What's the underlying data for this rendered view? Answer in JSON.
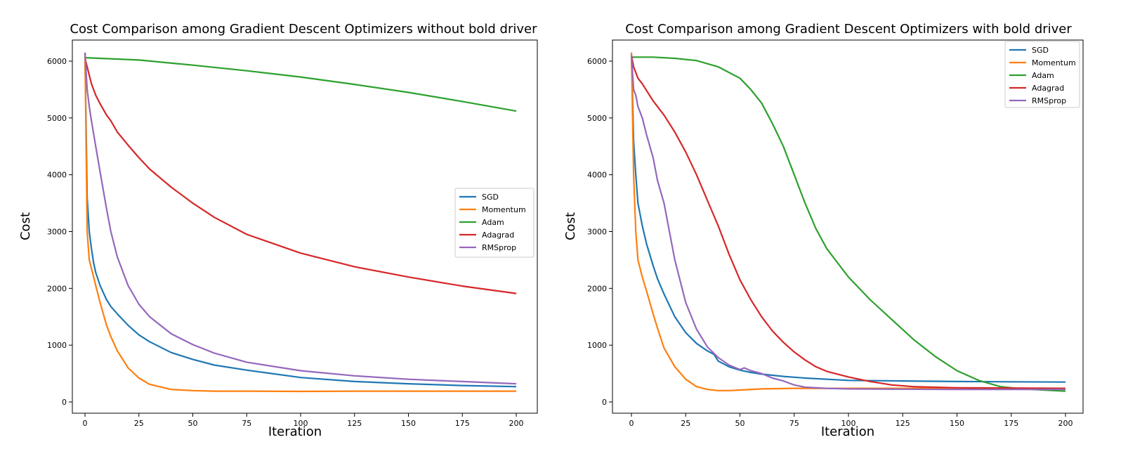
{
  "colors": {
    "SGD": "#1f77b4",
    "Momentum": "#ff7f0e",
    "Adam": "#2ca02c",
    "Adagrad": "#d62728",
    "RMSprop": "#9467bd"
  },
  "chart_data": [
    {
      "type": "line",
      "title": "Cost Comparison among Gradient Descent Optimizers without bold driver",
      "xlabel": "Iteration",
      "ylabel": "Cost",
      "xlim": [
        0,
        200
      ],
      "ylim": [
        0,
        6000
      ],
      "xticks": [
        0,
        25,
        50,
        75,
        100,
        125,
        150,
        175,
        200
      ],
      "yticks": [
        0,
        1000,
        2000,
        3000,
        4000,
        5000,
        6000
      ],
      "grid": false,
      "legend": "center-right",
      "series": [
        {
          "name": "SGD",
          "x": [
            0,
            1,
            2,
            3,
            4,
            5,
            7,
            10,
            12,
            15,
            20,
            25,
            30,
            40,
            50,
            60,
            75,
            100,
            125,
            150,
            175,
            200
          ],
          "y": [
            6150,
            3600,
            3000,
            2700,
            2450,
            2280,
            2050,
            1800,
            1680,
            1550,
            1350,
            1180,
            1060,
            870,
            750,
            650,
            560,
            430,
            360,
            320,
            290,
            270
          ]
        },
        {
          "name": "Momentum",
          "x": [
            0,
            1,
            2,
            3,
            4,
            5,
            7,
            10,
            12,
            15,
            20,
            25,
            30,
            40,
            50,
            60,
            75,
            100,
            125,
            150,
            175,
            200
          ],
          "y": [
            6150,
            3000,
            2500,
            2350,
            2200,
            2050,
            1750,
            1350,
            1150,
            900,
            600,
            420,
            310,
            220,
            200,
            190,
            190,
            185,
            190,
            190,
            190,
            190
          ]
        },
        {
          "name": "Adam",
          "x": [
            0,
            25,
            50,
            75,
            100,
            125,
            150,
            175,
            200
          ],
          "y": [
            6060,
            6020,
            5930,
            5830,
            5720,
            5590,
            5450,
            5290,
            5120
          ]
        },
        {
          "name": "Adagrad",
          "x": [
            0,
            1,
            2,
            3,
            5,
            7,
            10,
            12,
            15,
            20,
            25,
            30,
            40,
            50,
            60,
            75,
            100,
            125,
            150,
            175,
            200
          ],
          "y": [
            6050,
            5900,
            5750,
            5600,
            5400,
            5250,
            5050,
            4950,
            4750,
            4520,
            4300,
            4100,
            3780,
            3500,
            3250,
            2950,
            2620,
            2380,
            2200,
            2040,
            1910
          ]
        },
        {
          "name": "RMSprop",
          "x": [
            0,
            1,
            2,
            3,
            5,
            7,
            10,
            12,
            15,
            20,
            25,
            30,
            40,
            50,
            60,
            75,
            100,
            125,
            150,
            175,
            200
          ],
          "y": [
            6150,
            5500,
            5200,
            4950,
            4500,
            4050,
            3400,
            3000,
            2550,
            2050,
            1720,
            1500,
            1200,
            1010,
            860,
            700,
            550,
            460,
            400,
            360,
            320
          ]
        }
      ]
    },
    {
      "type": "line",
      "title": "Cost Comparison among Gradient Descent Optimizers with bold driver",
      "xlabel": "Iteration",
      "ylabel": "Cost",
      "xlim": [
        0,
        200
      ],
      "ylim": [
        0,
        6000
      ],
      "xticks": [
        0,
        25,
        50,
        75,
        100,
        125,
        150,
        175,
        200
      ],
      "yticks": [
        0,
        1000,
        2000,
        3000,
        4000,
        5000,
        6000
      ],
      "grid": false,
      "legend": "top-right",
      "series": [
        {
          "name": "SGD",
          "x": [
            0,
            1,
            2,
            3,
            5,
            7,
            10,
            12,
            15,
            20,
            25,
            30,
            35,
            38,
            40,
            45,
            50,
            55,
            60,
            70,
            80,
            100,
            125,
            150,
            175,
            200
          ],
          "y": [
            6150,
            4600,
            4000,
            3500,
            3100,
            2780,
            2400,
            2170,
            1900,
            1500,
            1220,
            1030,
            900,
            840,
            720,
            620,
            560,
            520,
            490,
            450,
            420,
            380,
            370,
            360,
            355,
            350
          ]
        },
        {
          "name": "Momentum",
          "x": [
            0,
            1,
            2,
            3,
            4,
            5,
            7,
            10,
            12,
            15,
            20,
            25,
            30,
            35,
            40,
            45,
            50,
            60,
            75,
            100,
            125,
            150,
            175,
            200
          ],
          "y": [
            6150,
            4000,
            3000,
            2500,
            2350,
            2200,
            1950,
            1550,
            1300,
            950,
            620,
            400,
            270,
            220,
            200,
            200,
            210,
            230,
            240,
            240,
            240,
            240,
            240,
            240
          ]
        },
        {
          "name": "Adam",
          "x": [
            0,
            10,
            20,
            30,
            40,
            50,
            55,
            60,
            65,
            70,
            75,
            80,
            85,
            90,
            95,
            100,
            110,
            120,
            130,
            140,
            150,
            160,
            170,
            180,
            190,
            200
          ],
          "y": [
            6070,
            6070,
            6050,
            6010,
            5900,
            5700,
            5500,
            5260,
            4900,
            4500,
            4000,
            3500,
            3050,
            2700,
            2450,
            2200,
            1800,
            1450,
            1100,
            800,
            550,
            380,
            270,
            230,
            210,
            190
          ]
        },
        {
          "name": "Adagrad",
          "x": [
            0,
            1,
            2,
            3,
            5,
            10,
            15,
            20,
            25,
            30,
            35,
            40,
            45,
            50,
            55,
            60,
            65,
            70,
            75,
            80,
            85,
            90,
            100,
            110,
            115,
            120,
            130,
            150,
            175,
            200
          ],
          "y": [
            6100,
            5900,
            5800,
            5700,
            5600,
            5300,
            5050,
            4750,
            4400,
            4000,
            3550,
            3100,
            2600,
            2150,
            1800,
            1500,
            1250,
            1050,
            880,
            740,
            620,
            540,
            440,
            360,
            330,
            300,
            270,
            250,
            245,
            240
          ]
        },
        {
          "name": "RMSprop",
          "x": [
            0,
            1,
            2,
            3,
            5,
            7,
            10,
            12,
            15,
            20,
            25,
            30,
            35,
            40,
            45,
            50,
            52,
            55,
            60,
            65,
            70,
            75,
            80,
            90,
            100,
            125,
            150,
            175,
            200
          ],
          "y": [
            6100,
            5500,
            5400,
            5200,
            5000,
            4700,
            4300,
            3900,
            3500,
            2500,
            1750,
            1280,
            970,
            780,
            650,
            570,
            600,
            550,
            500,
            420,
            370,
            300,
            260,
            240,
            230,
            225,
            220,
            220,
            220
          ]
        }
      ]
    }
  ]
}
